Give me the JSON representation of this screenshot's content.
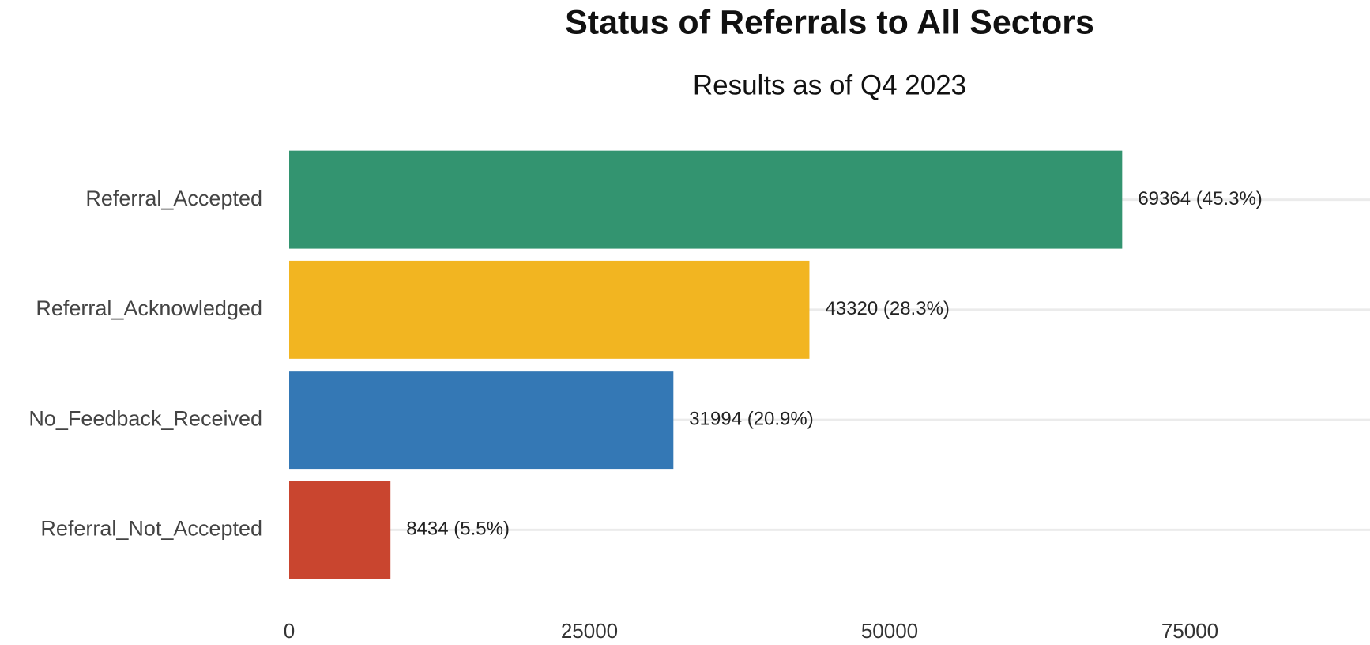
{
  "chart_data": {
    "type": "bar",
    "orientation": "horizontal",
    "title": "Status of Referrals to All Sectors",
    "subtitle": "Results as of Q4 2023",
    "categories": [
      "Referral_Accepted",
      "Referral_Acknowledged",
      "No_Feedback_Received",
      "Referral_Not_Accepted"
    ],
    "values": [
      69364,
      43320,
      31994,
      8434
    ],
    "value_labels": [
      "69364 (45.3%)",
      "43320 (28.3%)",
      "31994 (20.9%)",
      "8434 (5.5%)"
    ],
    "colors": [
      "#339470",
      "#f2b521",
      "#3478b5",
      "#c9452f"
    ],
    "xlim": [
      0,
      90000
    ],
    "xticks": [
      0,
      25000,
      50000,
      75000
    ],
    "grid": true
  }
}
